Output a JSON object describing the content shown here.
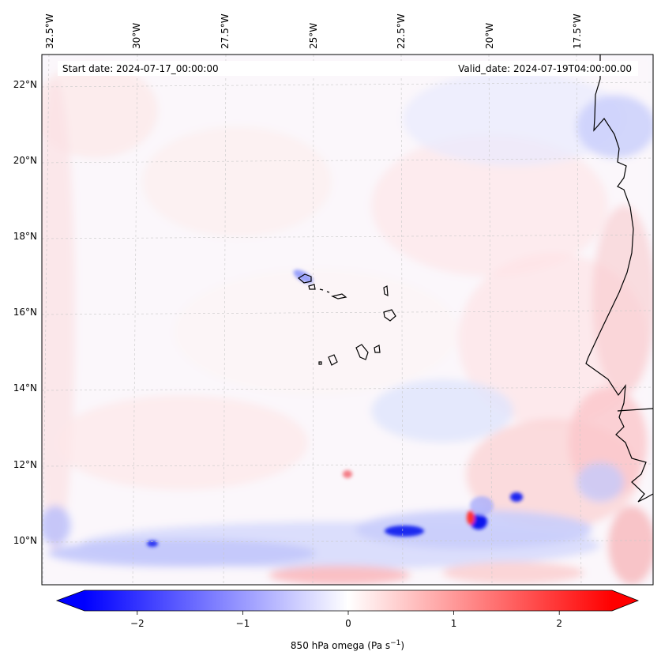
{
  "map": {
    "start_date": "Start date: 2024-07-17_00:00:00",
    "valid_date": "Valid_date: 2024-07-19T04:00:00.00",
    "lon_labels": [
      "32.5°W",
      "30°W",
      "27.5°W",
      "25°W",
      "22.5°W",
      "20°W",
      "17.5°W"
    ],
    "lat_labels": [
      "22°N",
      "20°N",
      "18°N",
      "16°N",
      "14°N",
      "12°N",
      "10°N"
    ],
    "colorbar": {
      "tick_labels": [
        "−2",
        "−1",
        "0",
        "1",
        "2"
      ],
      "tick_values": [
        -2,
        -1,
        0,
        1,
        2
      ],
      "range": [
        -2.5,
        2.5
      ],
      "colormap": "bwr",
      "label_prefix": "850 hPa omega (Pa s",
      "label_sup": "−1",
      "label_suffix": ")"
    },
    "colors": {
      "negative": "#0000ff",
      "neutral": "#ffffff",
      "positive": "#ff0000",
      "coastline": "#000000"
    }
  }
}
